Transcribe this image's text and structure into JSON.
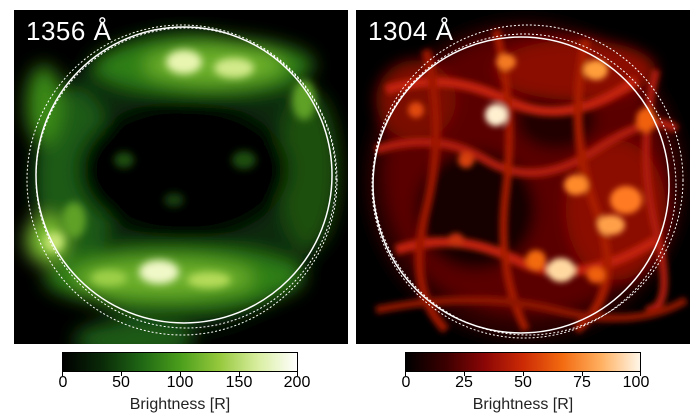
{
  "panels": [
    {
      "label": "1356 Å",
      "colormap": [
        "#000000",
        "#0a2a08",
        "#1f6614",
        "#4a9e1c",
        "#95c83c",
        "#d9eea0",
        "#ffffff"
      ],
      "colorbar": {
        "ticks": [
          "0",
          "50",
          "100",
          "150",
          "200"
        ],
        "title": "Brightness [R]",
        "range": [
          0,
          200
        ]
      }
    },
    {
      "label": "1304 Å",
      "colormap": [
        "#000000",
        "#3a0000",
        "#8a0606",
        "#cc2a05",
        "#f26a10",
        "#ffb060",
        "#fff6e8"
      ],
      "colorbar": {
        "ticks": [
          "0",
          "25",
          "50",
          "75",
          "100"
        ],
        "title": "Brightness [R]",
        "range": [
          0,
          100
        ]
      }
    }
  ]
}
